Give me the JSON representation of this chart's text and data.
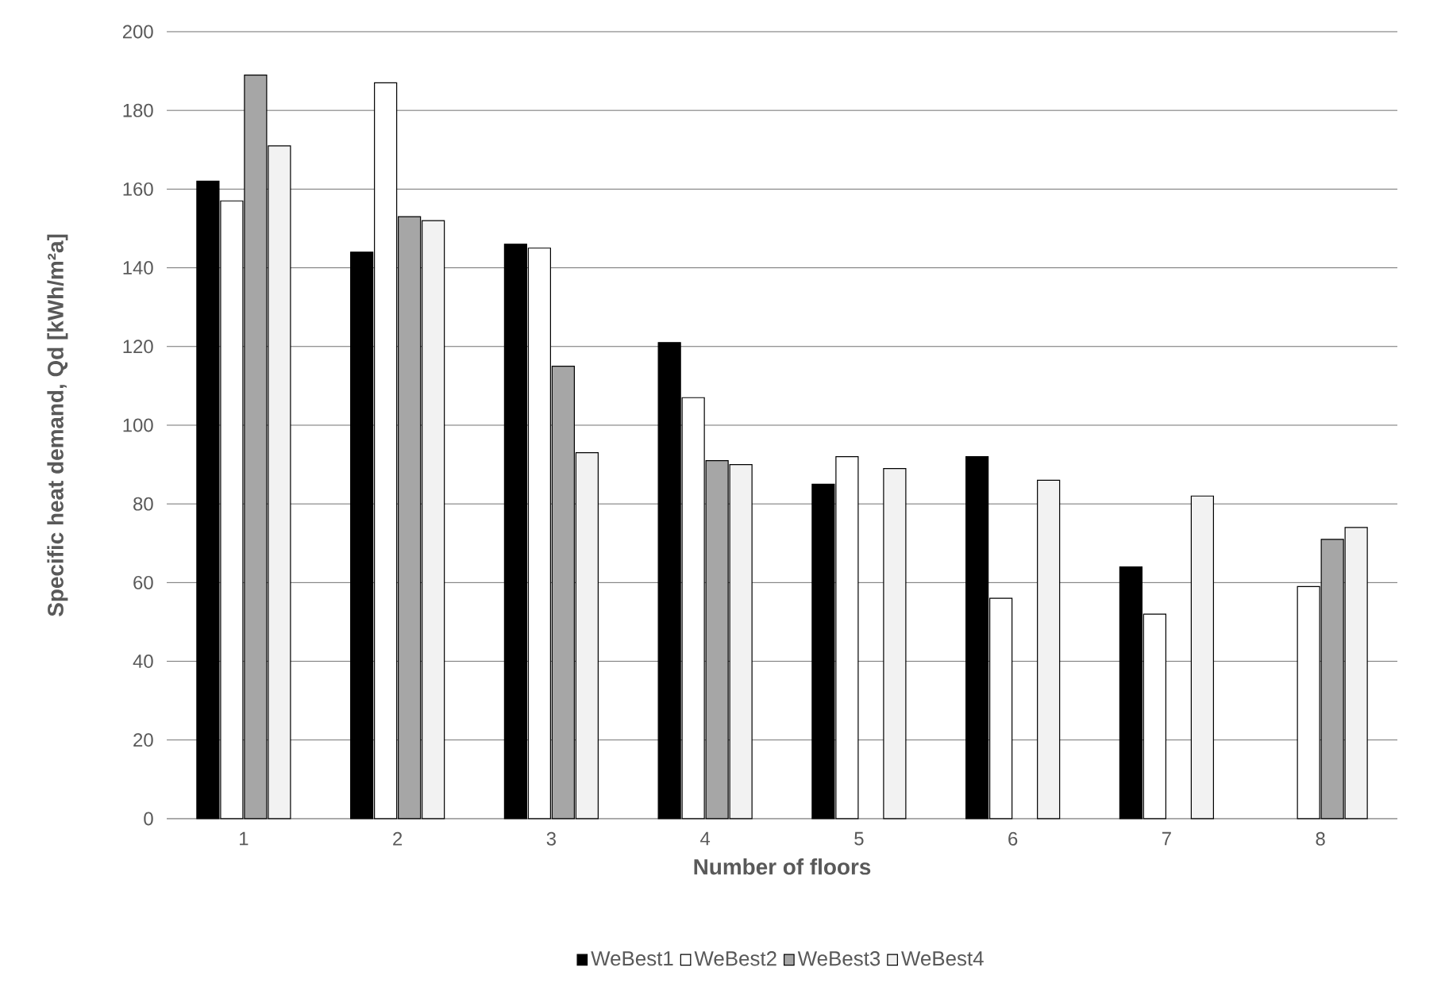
{
  "chart_data": {
    "type": "bar",
    "xlabel": "Number of floors",
    "ylabel": "Specific heat demand, Qd [kWh/m²a]",
    "categories": [
      "1",
      "2",
      "3",
      "4",
      "5",
      "6",
      "7",
      "8"
    ],
    "series": [
      {
        "name": "WeBest1",
        "color": "#000000",
        "values": [
          162,
          144,
          146,
          121,
          85,
          92,
          64,
          null
        ]
      },
      {
        "name": "WeBest2",
        "color": "#ffffff",
        "values": [
          157,
          187,
          145,
          107,
          92,
          56,
          52,
          59
        ]
      },
      {
        "name": "WeBest3",
        "color": "#a6a6a6",
        "values": [
          189,
          153,
          115,
          91,
          null,
          null,
          null,
          71
        ]
      },
      {
        "name": "WeBest4",
        "color": "#f2f2f2",
        "values": [
          171,
          152,
          93,
          90,
          89,
          86,
          82,
          74
        ]
      }
    ],
    "ylim": [
      0,
      200
    ],
    "yticks": [
      0,
      20,
      40,
      60,
      80,
      100,
      120,
      140,
      160,
      180,
      200
    ],
    "grid": "y",
    "legend": "bottom"
  }
}
